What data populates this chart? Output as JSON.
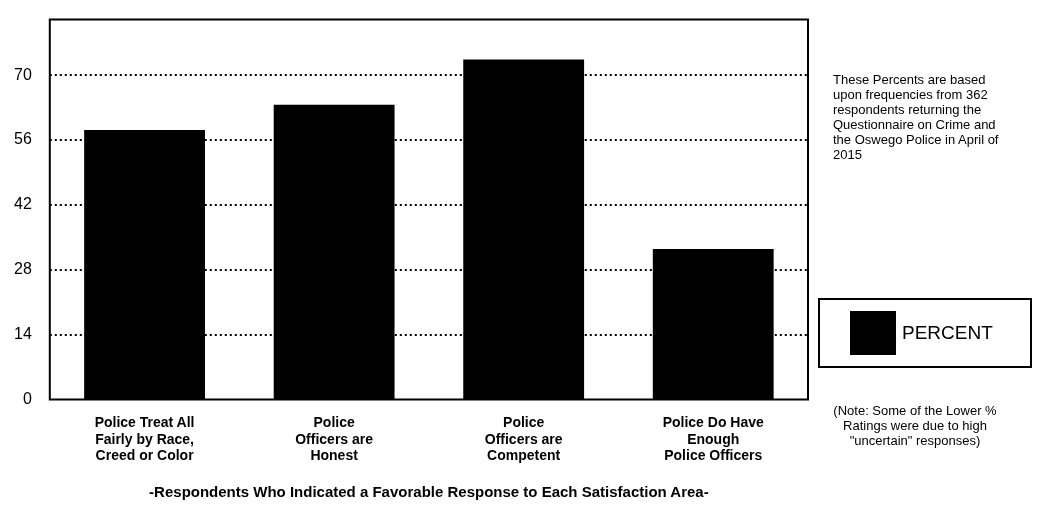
{
  "chart_data": {
    "type": "bar",
    "xlabel": "-Respondents Who Indicated a Favorable Response to Each Satisfaction Area-",
    "categories": [
      "Police Treat All\nFairly by Race,\nCreed or Color",
      "Police\nOfficers are\nHonest",
      "Police\nOfficers are\nCompetent",
      "Police Do Have\nEnough\nPolice Officers"
    ],
    "series": [
      {
        "name": "PERCENT",
        "color": "#000000",
        "values": [
          58.2,
          63.6,
          73.4,
          32.5
        ]
      }
    ],
    "ylim": [
      0,
      82
    ],
    "yticks": [
      0,
      14,
      28,
      42,
      56,
      70
    ],
    "grid": "y",
    "legend": "right",
    "annotations": [
      "These Percents are based upon frequencies from 362 respondents returning the Questionnaire on Crime and the Oswego Police in April of 2015",
      "(Note: Some of the Lower % Ratings were due to high \"uncertain\" responses)"
    ]
  }
}
